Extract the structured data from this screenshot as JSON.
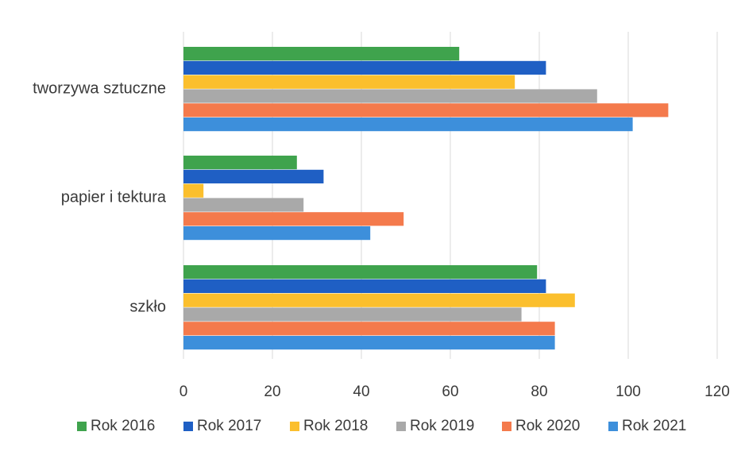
{
  "chart_data": {
    "type": "bar",
    "orientation": "horizontal",
    "title": "",
    "xlabel": "",
    "ylabel": "",
    "categories": [
      "tworzywa sztuczne",
      "papier i tektura",
      "szkło"
    ],
    "xlim": [
      0,
      120
    ],
    "xticks": [
      0,
      20,
      40,
      60,
      80,
      100,
      120
    ],
    "grid": "vertical",
    "legend_position": "bottom",
    "series": [
      {
        "name": "Rok 2016",
        "color": "#3fa34d",
        "values": [
          62,
          25.5,
          79.5
        ]
      },
      {
        "name": "Rok 2017",
        "color": "#1f5fc4",
        "values": [
          81.5,
          31.5,
          81.5
        ]
      },
      {
        "name": "Rok 2018",
        "color": "#fbbf2d",
        "values": [
          74.5,
          4.5,
          88
        ]
      },
      {
        "name": "Rok 2019",
        "color": "#a9a9a9",
        "values": [
          93,
          27,
          76
        ]
      },
      {
        "name": "Rok 2020",
        "color": "#f47a4c",
        "values": [
          109,
          49.5,
          83.5
        ]
      },
      {
        "name": "Rok 2021",
        "color": "#3d8fdb",
        "values": [
          101,
          42,
          83.5
        ]
      }
    ]
  }
}
